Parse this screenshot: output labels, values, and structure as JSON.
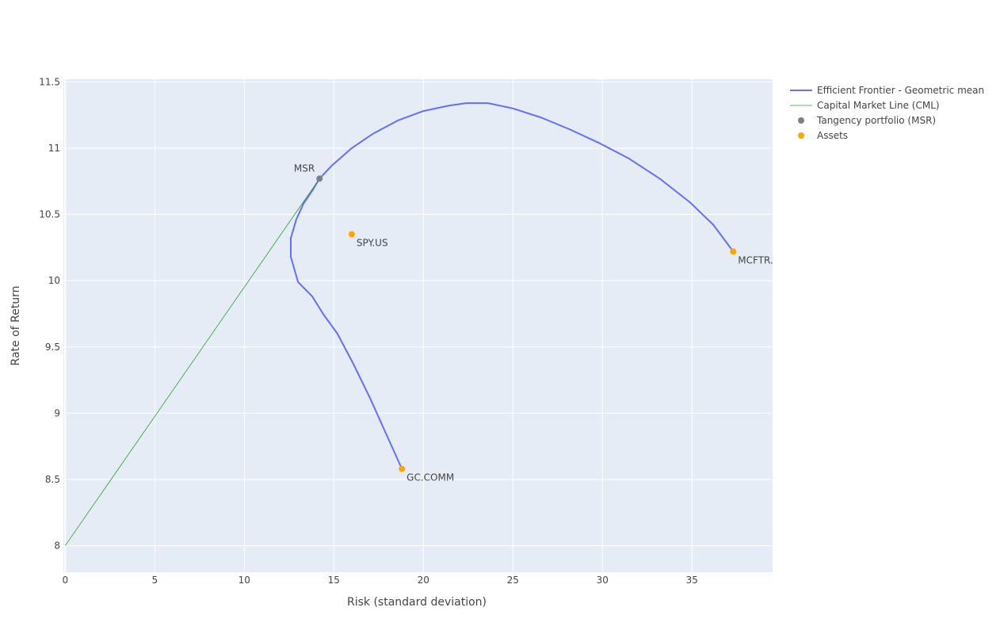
{
  "chart_data": {
    "type": "scatter",
    "title": "",
    "xlabel": "Risk (standard deviation)",
    "ylabel": "Rate of Return",
    "xlim": [
      -0.1,
      39.5
    ],
    "ylim": [
      7.8,
      11.52
    ],
    "xticks": [
      0,
      5,
      10,
      15,
      20,
      25,
      30,
      35
    ],
    "yticks": [
      8,
      8.5,
      9,
      9.5,
      10,
      10.5,
      11,
      11.5
    ],
    "yticklabels": [
      "8",
      "8.5",
      "9",
      "9.5",
      "10",
      "10.5",
      "11",
      "11.5"
    ],
    "grid": true,
    "legend_position": "top-right, outside plot",
    "colors": {
      "plot_bg": "#e5ecf6",
      "grid": "#ffffff",
      "frontier": "#636efa",
      "cml": "#2ca02c",
      "tangency": "#808080",
      "assets": "#ffa500"
    },
    "series": [
      {
        "name": "Efficient Frontier - Geometric mean",
        "mode": "line",
        "points": [
          [
            18.8,
            8.58
          ],
          [
            17.9,
            8.85
          ],
          [
            17.0,
            9.12
          ],
          [
            16.1,
            9.37
          ],
          [
            15.2,
            9.6
          ],
          [
            14.4,
            9.75
          ],
          [
            13.8,
            9.88
          ],
          [
            13.0,
            9.99
          ],
          [
            12.6,
            10.18
          ],
          [
            12.6,
            10.32
          ],
          [
            12.9,
            10.46
          ],
          [
            13.3,
            10.58
          ],
          [
            13.8,
            10.68
          ],
          [
            14.2,
            10.77
          ],
          [
            14.9,
            10.87
          ],
          [
            16.0,
            11.0
          ],
          [
            17.2,
            11.11
          ],
          [
            18.6,
            11.21
          ],
          [
            20.0,
            11.28
          ],
          [
            21.4,
            11.32
          ],
          [
            22.4,
            11.34
          ],
          [
            23.6,
            11.34
          ],
          [
            25.0,
            11.3
          ],
          [
            26.6,
            11.23
          ],
          [
            28.2,
            11.14
          ],
          [
            29.8,
            11.04
          ],
          [
            31.5,
            10.92
          ],
          [
            33.2,
            10.77
          ],
          [
            34.9,
            10.59
          ],
          [
            36.2,
            10.42
          ],
          [
            37.3,
            10.22
          ]
        ]
      },
      {
        "name": "Capital Market Line (CML)",
        "mode": "line",
        "points": [
          [
            0,
            8.0
          ],
          [
            14.2,
            10.77
          ]
        ]
      },
      {
        "name": "Tangency portfolio (MSR)",
        "mode": "markers",
        "points": [
          [
            14.2,
            10.77
          ]
        ],
        "labels": [
          "MSR"
        ]
      },
      {
        "name": "Assets",
        "mode": "markers",
        "points": [
          [
            16.0,
            10.35
          ],
          [
            37.3,
            10.22
          ],
          [
            18.8,
            8.58
          ]
        ],
        "labels": [
          "SPY.US",
          "MCFTR.",
          "GC.COMM"
        ]
      }
    ]
  }
}
